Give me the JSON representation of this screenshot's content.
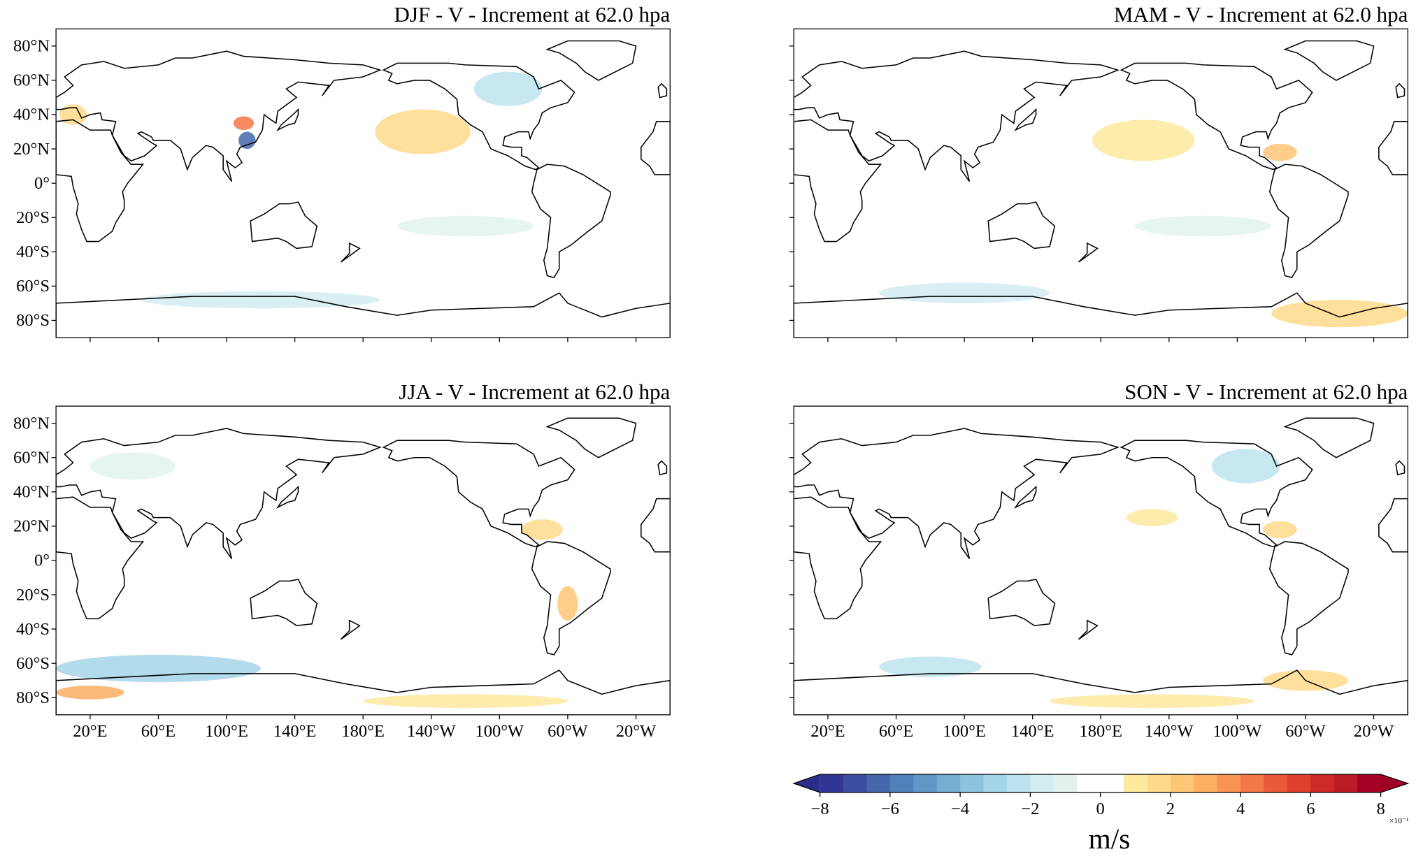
{
  "panels": [
    {
      "title": "DJF - V - Increment at 62.0 hpa"
    },
    {
      "title": "MAM - V - Increment at 62.0 hpa"
    },
    {
      "title": "JJA - V - Increment at 62.0 hpa"
    },
    {
      "title": "SON - V - Increment at 62.0 hpa"
    }
  ],
  "map": {
    "xlim": [
      0,
      360
    ],
    "ylim": [
      -90,
      90
    ],
    "lat_ticks": [
      {
        "value": 80,
        "label": "80°N"
      },
      {
        "value": 60,
        "label": "60°N"
      },
      {
        "value": 40,
        "label": "40°N"
      },
      {
        "value": 20,
        "label": "20°N"
      },
      {
        "value": 0,
        "label": "0°"
      },
      {
        "value": -20,
        "label": "20°S"
      },
      {
        "value": -40,
        "label": "40°S"
      },
      {
        "value": -60,
        "label": "60°S"
      },
      {
        "value": -80,
        "label": "80°S"
      }
    ],
    "lon_ticks": [
      {
        "value": 20,
        "label": "20°E"
      },
      {
        "value": 60,
        "label": "60°E"
      },
      {
        "value": 100,
        "label": "100°E"
      },
      {
        "value": 140,
        "label": "140°E"
      },
      {
        "value": 180,
        "label": "180°E"
      },
      {
        "value": 220,
        "label": "140°W"
      },
      {
        "value": 260,
        "label": "100°W"
      },
      {
        "value": 300,
        "label": "60°W"
      },
      {
        "value": 340,
        "label": "20°W"
      }
    ]
  },
  "colorbar": {
    "clim": [
      -8,
      8
    ],
    "colors": [
      "#313695",
      "#3b4ea1",
      "#4567ad",
      "#5080b9",
      "#5f98c6",
      "#74add1",
      "#8ec3dd",
      "#a5d5e8",
      "#bde3ef",
      "#d2ecf1",
      "#e2f3ef",
      "#ffffff",
      "#ffffff",
      "#fee99d",
      "#fed98a",
      "#fdc676",
      "#fcae63",
      "#f99353",
      "#f47747",
      "#ea5a3a",
      "#de3f2e",
      "#cc2a27",
      "#ba1b26",
      "#a50026"
    ],
    "under_color": "#2b2d8a",
    "over_color": "#a00025",
    "ticks": [
      {
        "value": -8,
        "label": "−8"
      },
      {
        "value": -6,
        "label": "−6"
      },
      {
        "value": -4,
        "label": "−4"
      },
      {
        "value": -2,
        "label": "−2"
      },
      0,
      2,
      4,
      6,
      8
    ],
    "multiplier": "×10⁻¹",
    "unit": "m/s"
  }
}
